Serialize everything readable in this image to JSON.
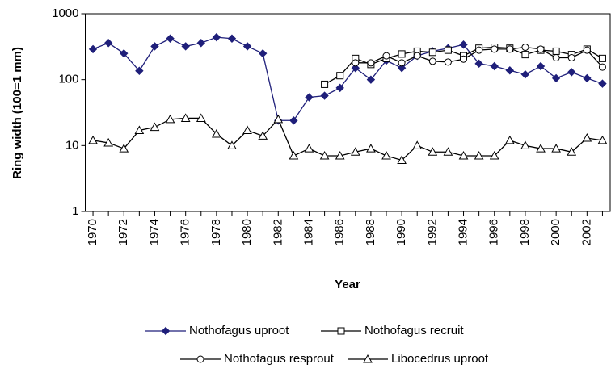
{
  "chart_data": {
    "type": "line",
    "xlabel": "Year",
    "ylabel": "Ring width (100=1 mm)",
    "x": [
      1970,
      1971,
      1972,
      1973,
      1974,
      1975,
      1976,
      1977,
      1978,
      1979,
      1980,
      1981,
      1982,
      1983,
      1984,
      1985,
      1986,
      1987,
      1988,
      1989,
      1990,
      1991,
      1992,
      1993,
      1994,
      1995,
      1996,
      1997,
      1998,
      1999,
      2000,
      2001,
      2002,
      2003
    ],
    "xlim": [
      1969.5,
      2003.5
    ],
    "xticks": [
      1970,
      1972,
      1974,
      1976,
      1978,
      1980,
      1982,
      1984,
      1986,
      1988,
      1990,
      1992,
      1994,
      1996,
      1998,
      2000,
      2002
    ],
    "ylim": [
      1,
      1000
    ],
    "yticks": [
      1,
      10,
      100,
      1000
    ],
    "log_y": true,
    "grid": false,
    "series": [
      {
        "name": "Nothofagus uproot",
        "color": "#1f1f7a",
        "marker": "diamond",
        "values": [
          290,
          360,
          250,
          136,
          320,
          420,
          320,
          360,
          440,
          420,
          320,
          250,
          24,
          24,
          54,
          57,
          75,
          150,
          100,
          195,
          150,
          230,
          270,
          300,
          340,
          175,
          160,
          138,
          120,
          160,
          105,
          130,
          105,
          87
        ]
      },
      {
        "name": "Nothofagus recruit",
        "color": "#000000",
        "marker": "square",
        "values": [
          null,
          null,
          null,
          null,
          null,
          null,
          null,
          null,
          null,
          null,
          null,
          null,
          null,
          null,
          null,
          85,
          115,
          210,
          170,
          210,
          245,
          270,
          260,
          280,
          230,
          300,
          310,
          300,
          240,
          280,
          270,
          240,
          290,
          210
        ]
      },
      {
        "name": "Nothofagus resprout",
        "color": "#000000",
        "marker": "circle",
        "values": [
          null,
          null,
          null,
          null,
          null,
          null,
          null,
          null,
          null,
          null,
          null,
          null,
          null,
          null,
          null,
          null,
          null,
          180,
          180,
          230,
          180,
          230,
          190,
          185,
          205,
          280,
          290,
          290,
          310,
          290,
          215,
          215,
          280,
          155
        ]
      },
      {
        "name": "Libocedrus uproot",
        "color": "#000000",
        "marker": "triangle",
        "values": [
          12,
          11,
          9,
          17,
          19,
          25,
          26,
          26,
          15,
          10,
          17,
          14,
          25,
          7,
          9,
          7,
          7,
          8,
          9,
          7,
          6,
          10,
          8,
          8,
          7,
          7,
          7,
          12,
          10,
          9,
          9,
          8,
          13,
          12
        ]
      }
    ]
  }
}
